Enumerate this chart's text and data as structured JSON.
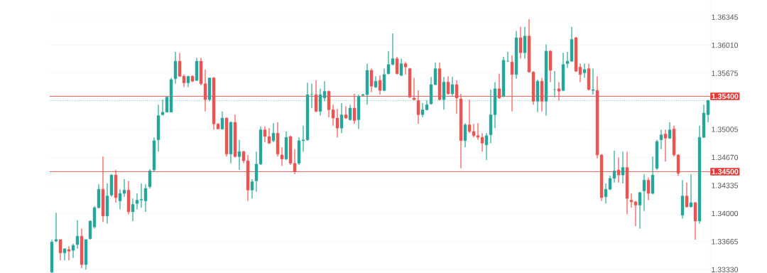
{
  "chart_data": {
    "type": "candlestick",
    "categories": [
      null,
      null,
      null,
      null,
      null,
      null,
      null,
      null,
      null,
      null,
      null,
      null,
      null,
      null,
      null,
      null,
      null,
      null,
      null,
      null,
      null,
      null,
      null,
      null,
      null,
      null,
      null,
      null,
      null,
      null,
      null,
      null,
      null,
      null,
      null,
      null,
      null,
      null,
      null,
      null,
      null,
      null,
      null,
      null,
      null,
      null,
      null,
      null,
      null,
      null,
      null,
      null,
      null,
      null,
      null,
      null,
      null,
      null,
      null,
      null,
      null,
      null,
      null,
      null,
      null,
      null,
      null,
      null,
      null,
      null,
      null,
      null,
      null,
      null,
      null,
      null,
      null,
      null,
      null,
      null,
      null,
      null,
      null,
      null,
      null,
      null,
      null,
      null,
      null,
      null,
      null,
      null,
      null,
      null,
      null,
      null,
      null,
      null,
      null,
      null,
      null,
      null,
      null,
      null,
      null,
      null,
      null,
      null,
      null,
      null,
      null,
      null,
      null,
      null,
      null,
      null,
      null,
      null,
      null,
      null,
      null,
      null,
      null,
      null,
      null,
      null,
      null,
      null,
      null,
      null,
      null,
      null,
      null,
      null,
      null,
      null,
      null,
      null,
      null,
      null,
      null,
      null,
      null,
      null,
      null,
      null,
      null,
      null,
      null,
      null,
      null,
      null,
      null,
      null,
      null
    ],
    "ohlc": [
      [
        1.333,
        1.3369,
        1.3328,
        1.3366
      ],
      [
        1.3367,
        1.3401,
        1.3366,
        1.3369
      ],
      [
        1.3369,
        1.3369,
        1.3344,
        1.3353
      ],
      [
        1.3353,
        1.3358,
        1.3344,
        1.3358
      ],
      [
        1.3357,
        1.3361,
        1.3344,
        1.3355
      ],
      [
        1.3356,
        1.3364,
        1.3347,
        1.3362
      ],
      [
        1.3363,
        1.3392,
        1.3358,
        1.3373
      ],
      [
        1.3373,
        1.3382,
        1.3335,
        1.3339
      ],
      [
        1.3339,
        1.3369,
        1.3333,
        1.3369
      ],
      [
        1.337,
        1.3392,
        1.3369,
        1.3391
      ],
      [
        1.3384,
        1.3409,
        1.3382,
        1.3407
      ],
      [
        1.3407,
        1.3435,
        1.3406,
        1.3429
      ],
      [
        1.3429,
        1.3468,
        1.339,
        1.3397
      ],
      [
        1.3397,
        1.3436,
        1.3388,
        1.3421
      ],
      [
        1.3422,
        1.3447,
        1.342,
        1.3446
      ],
      [
        1.3446,
        1.3452,
        1.3413,
        1.3419
      ],
      [
        1.3415,
        1.3429,
        1.3405,
        1.3424
      ],
      [
        1.3424,
        1.3441,
        1.342,
        1.3428
      ],
      [
        1.3428,
        1.3439,
        1.3399,
        1.3402
      ],
      [
        1.3402,
        1.3418,
        1.3391,
        1.3411
      ],
      [
        1.3412,
        1.3424,
        1.3405,
        1.3416
      ],
      [
        1.3416,
        1.3436,
        1.3407,
        1.3417
      ],
      [
        1.3415,
        1.3435,
        1.3402,
        1.343
      ],
      [
        1.3432,
        1.3453,
        1.343,
        1.3451
      ],
      [
        1.3452,
        1.3491,
        1.345,
        1.3487
      ],
      [
        1.3488,
        1.353,
        1.3474,
        1.3517
      ],
      [
        1.3518,
        1.3536,
        1.3517,
        1.3521
      ],
      [
        1.3521,
        1.354,
        1.3521,
        1.3539
      ],
      [
        1.3521,
        1.3562,
        1.3521,
        1.356
      ],
      [
        1.3561,
        1.3593,
        1.3555,
        1.3582
      ],
      [
        1.3582,
        1.3592,
        1.3563,
        1.3564
      ],
      [
        1.3564,
        1.3566,
        1.3551,
        1.3556
      ],
      [
        1.3556,
        1.3564,
        1.3551,
        1.3564
      ],
      [
        1.3564,
        1.3565,
        1.3557,
        1.3558
      ],
      [
        1.3559,
        1.3586,
        1.3558,
        1.3582
      ],
      [
        1.3582,
        1.3586,
        1.3553,
        1.3555
      ],
      [
        1.3555,
        1.3572,
        1.3522,
        1.3536
      ],
      [
        1.3536,
        1.3562,
        1.3534,
        1.3562
      ],
      [
        1.3562,
        1.3563,
        1.35,
        1.3507
      ],
      [
        1.3507,
        1.3508,
        1.3501,
        1.3501
      ],
      [
        1.3501,
        1.3522,
        1.35,
        1.3514
      ],
      [
        1.3514,
        1.3515,
        1.3468,
        1.3471
      ],
      [
        1.3471,
        1.351,
        1.346,
        1.3509
      ],
      [
        1.3509,
        1.3518,
        1.3467,
        1.3468
      ],
      [
        1.3468,
        1.3488,
        1.3452,
        1.3474
      ],
      [
        1.3474,
        1.3475,
        1.346,
        1.3463
      ],
      [
        1.3463,
        1.347,
        1.3415,
        1.3428
      ],
      [
        1.3428,
        1.3441,
        1.3418,
        1.3438
      ],
      [
        1.3439,
        1.3474,
        1.3426,
        1.3459
      ],
      [
        1.3459,
        1.3504,
        1.3458,
        1.35
      ],
      [
        1.35,
        1.3504,
        1.3485,
        1.3492
      ],
      [
        1.3492,
        1.3502,
        1.3483,
        1.3484
      ],
      [
        1.3487,
        1.3508,
        1.3485,
        1.3496
      ],
      [
        1.3496,
        1.3509,
        1.3468,
        1.3471
      ],
      [
        1.347,
        1.3479,
        1.3457,
        1.3465
      ],
      [
        1.3465,
        1.3498,
        1.3464,
        1.3491
      ],
      [
        1.3492,
        1.3493,
        1.3458,
        1.346
      ],
      [
        1.346,
        1.3477,
        1.3447,
        1.345
      ],
      [
        1.346,
        1.3491,
        1.3458,
        1.3487
      ],
      [
        1.3487,
        1.3505,
        1.3474,
        1.3488
      ],
      [
        1.3488,
        1.3556,
        1.3487,
        1.3542
      ],
      [
        1.3542,
        1.3555,
        1.3526,
        1.3542
      ],
      [
        1.3542,
        1.3559,
        1.3521,
        1.3522
      ],
      [
        1.3522,
        1.3549,
        1.3517,
        1.3542
      ],
      [
        1.3538,
        1.3558,
        1.3534,
        1.3546
      ],
      [
        1.3546,
        1.3547,
        1.3515,
        1.3524
      ],
      [
        1.3524,
        1.353,
        1.3505,
        1.3514
      ],
      [
        1.3514,
        1.3525,
        1.3491,
        1.3502
      ],
      [
        1.3502,
        1.3532,
        1.3496,
        1.3518
      ],
      [
        1.3518,
        1.3528,
        1.3513,
        1.3514
      ],
      [
        1.3512,
        1.353,
        1.3511,
        1.3526
      ],
      [
        1.3526,
        1.3543,
        1.3507,
        1.3511
      ],
      [
        1.3512,
        1.3542,
        1.3501,
        1.354
      ],
      [
        1.3541,
        1.3543,
        1.354,
        1.3542
      ],
      [
        1.3542,
        1.3579,
        1.353,
        1.3571
      ],
      [
        1.3571,
        1.3573,
        1.3545,
        1.3552
      ],
      [
        1.3551,
        1.3564,
        1.355,
        1.3558
      ],
      [
        1.3559,
        1.3565,
        1.3542,
        1.3547
      ],
      [
        1.3547,
        1.3573,
        1.3546,
        1.3566
      ],
      [
        1.3567,
        1.3594,
        1.3566,
        1.3578
      ],
      [
        1.3578,
        1.3615,
        1.3577,
        1.3585
      ],
      [
        1.3585,
        1.3587,
        1.3566,
        1.3567
      ],
      [
        1.3565,
        1.3585,
        1.3564,
        1.3579
      ],
      [
        1.3579,
        1.3581,
        1.3566,
        1.3575
      ],
      [
        1.3573,
        1.3574,
        1.3538,
        1.3539
      ],
      [
        1.3538,
        1.3562,
        1.3535,
        1.3536
      ],
      [
        1.3535,
        1.3547,
        1.3507,
        1.3518
      ],
      [
        1.3518,
        1.3532,
        1.3515,
        1.3524
      ],
      [
        1.3524,
        1.3535,
        1.3523,
        1.353
      ],
      [
        1.3531,
        1.3563,
        1.353,
        1.3554
      ],
      [
        1.3554,
        1.358,
        1.3553,
        1.3573
      ],
      [
        1.3573,
        1.358,
        1.3535,
        1.3536
      ],
      [
        1.3536,
        1.3563,
        1.3524,
        1.3557
      ],
      [
        1.3557,
        1.3564,
        1.3542,
        1.3543
      ],
      [
        1.3543,
        1.3563,
        1.354,
        1.3554
      ],
      [
        1.3554,
        1.3559,
        1.3519,
        1.3538
      ],
      [
        1.3537,
        1.3543,
        1.3454,
        1.3487
      ],
      [
        1.3487,
        1.3508,
        1.3479,
        1.3506
      ],
      [
        1.3506,
        1.3536,
        1.3496,
        1.3498
      ],
      [
        1.3498,
        1.3507,
        1.3491,
        1.3493
      ],
      [
        1.3493,
        1.3508,
        1.3488,
        1.3491
      ],
      [
        1.3491,
        1.3496,
        1.3474,
        1.3484
      ],
      [
        1.3482,
        1.3496,
        1.3464,
        1.3493
      ],
      [
        1.3494,
        1.3548,
        1.3484,
        1.3518
      ],
      [
        1.3518,
        1.3557,
        1.3502,
        1.3549
      ],
      [
        1.3549,
        1.3567,
        1.3537,
        1.3538
      ],
      [
        1.354,
        1.3587,
        1.3539,
        1.3583
      ],
      [
        1.3582,
        1.3593,
        1.3581,
        1.3582
      ],
      [
        1.3581,
        1.3589,
        1.3522,
        1.3566
      ],
      [
        1.3566,
        1.3618,
        1.3561,
        1.361
      ],
      [
        1.361,
        1.3623,
        1.3585,
        1.3592
      ],
      [
        1.3592,
        1.3623,
        1.3585,
        1.3612
      ],
      [
        1.3612,
        1.3632,
        1.3568,
        1.3569
      ],
      [
        1.3569,
        1.357,
        1.353,
        1.3534
      ],
      [
        1.3534,
        1.356,
        1.3521,
        1.3558
      ],
      [
        1.3558,
        1.3562,
        1.3522,
        1.3534
      ],
      [
        1.3534,
        1.3602,
        1.3517,
        1.3594
      ],
      [
        1.3594,
        1.3595,
        1.3557,
        1.3571
      ],
      [
        1.3548,
        1.357,
        1.3539,
        1.3548
      ],
      [
        1.3549,
        1.3557,
        1.3535,
        1.3546
      ],
      [
        1.3547,
        1.3592,
        1.3546,
        1.3578
      ],
      [
        1.3579,
        1.3593,
        1.3574,
        1.3582
      ],
      [
        1.3582,
        1.3623,
        1.3581,
        1.3608
      ],
      [
        1.361,
        1.3611,
        1.3569,
        1.357
      ],
      [
        1.3575,
        1.3579,
        1.3557,
        1.3566
      ],
      [
        1.3568,
        1.3579,
        1.3562,
        1.3572
      ],
      [
        1.3573,
        1.3579,
        1.3547,
        1.3548
      ],
      [
        1.3547,
        1.3573,
        1.3542,
        1.3548
      ],
      [
        1.3547,
        1.3564,
        1.3466,
        1.347
      ],
      [
        1.347,
        1.3471,
        1.3415,
        1.3419
      ],
      [
        1.342,
        1.3436,
        1.3412,
        1.3429
      ],
      [
        1.3429,
        1.3445,
        1.3428,
        1.3442
      ],
      [
        1.3442,
        1.3475,
        1.3437,
        1.3451
      ],
      [
        1.3452,
        1.3467,
        1.3437,
        1.3446
      ],
      [
        1.3446,
        1.3474,
        1.3436,
        1.3455
      ],
      [
        1.3455,
        1.3474,
        1.3399,
        1.3418
      ],
      [
        1.3416,
        1.3424,
        1.3407,
        1.3414
      ],
      [
        1.3414,
        1.3415,
        1.3385,
        1.341
      ],
      [
        1.341,
        1.3426,
        1.3382,
        1.3425
      ],
      [
        1.3427,
        1.3447,
        1.3403,
        1.344
      ],
      [
        1.344,
        1.3443,
        1.3416,
        1.3424
      ],
      [
        1.3424,
        1.3468,
        1.3423,
        1.3446
      ],
      [
        1.3454,
        1.3488,
        1.3452,
        1.3486
      ],
      [
        1.3488,
        1.35,
        1.3477,
        1.3494
      ],
      [
        1.3495,
        1.35,
        1.3462,
        1.349
      ],
      [
        1.349,
        1.3509,
        1.3489,
        1.35
      ],
      [
        1.3501,
        1.3505,
        1.3468,
        1.347
      ],
      [
        1.347,
        1.3471,
        1.3445,
        1.3448
      ],
      [
        1.3398,
        1.344,
        1.3394,
        1.3421
      ],
      [
        1.3421,
        1.3437,
        1.3407,
        1.3408
      ],
      [
        1.3408,
        1.3447,
        1.3407,
        1.3413
      ],
      [
        1.3413,
        1.3414,
        1.3369,
        1.3391
      ],
      [
        1.3391,
        1.3505,
        1.3388,
        1.3491
      ],
      [
        1.3491,
        1.353,
        1.349,
        1.352
      ],
      [
        1.3518,
        1.3536,
        1.3509,
        1.3535
      ]
    ],
    "colors": [
      "#26a69a",
      "#26a69a",
      "#ef5350",
      "#26a69a",
      "#ef5350",
      "#26a69a",
      "#26a69a",
      "#ef5350",
      "#26a69a",
      "#26a69a",
      "#26a69a",
      "#26a69a",
      "#ef5350",
      "#26a69a",
      "#26a69a",
      "#ef5350",
      "#26a69a",
      "#26a69a",
      "#ef5350",
      "#26a69a",
      "#26a69a",
      "#26a69a",
      "#26a69a",
      "#26a69a",
      "#26a69a",
      "#26a69a",
      "#26a69a",
      "#26a69a",
      "#26a69a",
      "#26a69a",
      "#ef5350",
      "#ef5350",
      "#26a69a",
      "#ef5350",
      "#26a69a",
      "#ef5350",
      "#ef5350",
      "#26a69a",
      "#ef5350",
      "#ef5350",
      "#26a69a",
      "#ef5350",
      "#26a69a",
      "#ef5350",
      "#26a69a",
      "#ef5350",
      "#ef5350",
      "#26a69a",
      "#26a69a",
      "#26a69a",
      "#ef5350",
      "#ef5350",
      "#26a69a",
      "#ef5350",
      "#ef5350",
      "#26a69a",
      "#ef5350",
      "#ef5350",
      "#26a69a",
      "#26a69a",
      "#26a69a",
      "#26a69a",
      "#ef5350",
      "#26a69a",
      "#26a69a",
      "#ef5350",
      "#ef5350",
      "#ef5350",
      "#26a69a",
      "#ef5350",
      "#26a69a",
      "#ef5350",
      "#26a69a",
      "#26a69a",
      "#26a69a",
      "#ef5350",
      "#26a69a",
      "#ef5350",
      "#26a69a",
      "#26a69a",
      "#26a69a",
      "#ef5350",
      "#26a69a",
      "#ef5350",
      "#ef5350",
      "#ef5350",
      "#ef5350",
      "#26a69a",
      "#26a69a",
      "#26a69a",
      "#26a69a",
      "#ef5350",
      "#26a69a",
      "#ef5350",
      "#26a69a",
      "#ef5350",
      "#ef5350",
      "#26a69a",
      "#ef5350",
      "#ef5350",
      "#ef5350",
      "#ef5350",
      "#26a69a",
      "#26a69a",
      "#26a69a",
      "#ef5350",
      "#26a69a",
      "#26a69a",
      "#ef5350",
      "#26a69a",
      "#ef5350",
      "#26a69a",
      "#ef5350",
      "#ef5350",
      "#26a69a",
      "#ef5350",
      "#26a69a",
      "#ef5350",
      "#26a69a",
      "#ef5350",
      "#26a69a",
      "#26a69a",
      "#26a69a",
      "#ef5350",
      "#ef5350",
      "#26a69a",
      "#ef5350",
      "#26a69a",
      "#ef5350",
      "#ef5350",
      "#26a69a",
      "#26a69a",
      "#26a69a",
      "#ef5350",
      "#26a69a",
      "#ef5350",
      "#ef5350",
      "#ef5350",
      "#26a69a",
      "#26a69a",
      "#ef5350",
      "#26a69a",
      "#26a69a",
      "#26a69a",
      "#ef5350",
      "#26a69a",
      "#ef5350",
      "#ef5350",
      "#26a69a",
      "#ef5350",
      "#26a69a",
      "#ef5350",
      "#26a69a",
      "#26a69a",
      "#26a69a"
    ],
    "ylim": [
      1.3329,
      1.3655
    ],
    "yticks": [
      {
        "value": 1.3333,
        "label": "1.33330"
      },
      {
        "value": 1.33665,
        "label": "1.33665"
      },
      {
        "value": 1.34,
        "label": "1.34000"
      },
      {
        "value": 1.34335,
        "label": "1.34335"
      },
      {
        "value": 1.3467,
        "label": "1.34670"
      },
      {
        "value": 1.35005,
        "label": "1.35005"
      },
      {
        "value": 1.35675,
        "label": "1.35675"
      },
      {
        "value": 1.3601,
        "label": "1.36010"
      },
      {
        "value": 1.36345,
        "label": "1.36345"
      }
    ],
    "tick_labels": "y",
    "grid": "y",
    "ref_lines": [
      {
        "axis": "y",
        "value": 1.3535,
        "color": "#26a69a",
        "line_style": "dotted"
      },
      {
        "axis": "y",
        "value": 1.354,
        "label": "1.35400",
        "color": "#e53935",
        "line_style": "solid"
      },
      {
        "axis": "y",
        "value": 1.345,
        "label": "1.34500",
        "color": "#e53935",
        "line_style": "solid"
      }
    ]
  }
}
